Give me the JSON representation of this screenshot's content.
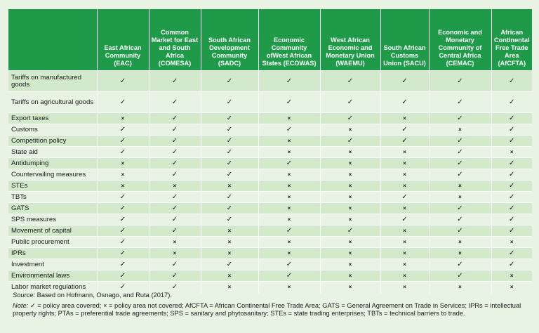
{
  "table": {
    "columns": [
      "East African Community (EAC)",
      "Common Market for East and South Africa (COMESA)",
      "South African Development Community (SADC)",
      "Economic Community ofWest African States (ECOWAS)",
      "West African Economic and Monetary Union (WAEMU)",
      "South African Customs Union (SACU)",
      "Economic and Monetary Community of Central Africa (CEMAC)",
      "African Continental Free Trade Area (AfCFTA)"
    ],
    "symbols": {
      "covered": "✓",
      "not_covered": "×"
    },
    "rows": [
      {
        "label": "Tariffs on manufactured goods",
        "marks": [
          "✓",
          "✓",
          "✓",
          "✓",
          "✓",
          "✓",
          "✓",
          "✓"
        ]
      },
      {
        "label": "Tariffs on agricultural goods",
        "marks": [
          "✓",
          "✓",
          "✓",
          "✓",
          "✓",
          "✓",
          "✓",
          "✓"
        ]
      },
      {
        "label": "Export taxes",
        "marks": [
          "×",
          "✓",
          "✓",
          "×",
          "✓",
          "×",
          "✓",
          "✓"
        ]
      },
      {
        "label": "Customs",
        "marks": [
          "✓",
          "✓",
          "✓",
          "✓",
          "×",
          "✓",
          "×",
          "✓"
        ]
      },
      {
        "label": "Competition policy",
        "marks": [
          "✓",
          "✓",
          "✓",
          "×",
          "✓",
          "✓",
          "✓",
          "✓"
        ]
      },
      {
        "label": "State aid",
        "marks": [
          "✓",
          "✓",
          "✓",
          "×",
          "×",
          "×",
          "✓",
          "×"
        ]
      },
      {
        "label": "Antidumping",
        "marks": [
          "×",
          "✓",
          "✓",
          "✓",
          "×",
          "×",
          "✓",
          "✓"
        ]
      },
      {
        "label": "Countervailing measures",
        "marks": [
          "×",
          "✓",
          "✓",
          "×",
          "×",
          "×",
          "✓",
          "✓"
        ]
      },
      {
        "label": "STEs",
        "marks": [
          "×",
          "×",
          "×",
          "×",
          "×",
          "×",
          "×",
          "✓"
        ]
      },
      {
        "label": "TBTs",
        "marks": [
          "✓",
          "✓",
          "✓",
          "×",
          "×",
          "✓",
          "×",
          "✓"
        ]
      },
      {
        "label": "GATS",
        "marks": [
          "✓",
          "✓",
          "✓",
          "×",
          "×",
          "×",
          "✓",
          "✓"
        ]
      },
      {
        "label": "SPS measures",
        "marks": [
          "✓",
          "✓",
          "✓",
          "×",
          "×",
          "✓",
          "✓",
          "✓"
        ]
      },
      {
        "label": "Movement of capital",
        "marks": [
          "✓",
          "✓",
          "×",
          "✓",
          "✓",
          "×",
          "✓",
          "✓"
        ]
      },
      {
        "label": "Public procurement",
        "marks": [
          "✓",
          "×",
          "×",
          "×",
          "×",
          "×",
          "×",
          "×"
        ]
      },
      {
        "label": "IPRs",
        "marks": [
          "✓",
          "×",
          "×",
          "×",
          "×",
          "×",
          "×",
          "✓"
        ]
      },
      {
        "label": "Investment",
        "marks": [
          "✓",
          "✓",
          "✓",
          "✓",
          "×",
          "×",
          "✓",
          "✓"
        ]
      },
      {
        "label": "Environmental laws",
        "marks": [
          "✓",
          "✓",
          "×",
          "✓",
          "×",
          "×",
          "✓",
          "×"
        ]
      },
      {
        "label": "Labor market regulations",
        "marks": [
          "✓",
          "✓",
          "×",
          "×",
          "×",
          "×",
          "×",
          "×"
        ]
      }
    ]
  },
  "notes": {
    "source_label": "Source:",
    "source_text": "Based on Hofmann, Osnago, and Ruta (2017).",
    "note_label": "Note:",
    "note_text": "✓ = policy area covered; × = policy area not covered; AfCFTA = African Continental Free Trade Area; GATS = General Agreement on Trade in Services; IPRs = intellectual property rights; PTAs = preferential trade agreements; SPS = sanitary and phytosanitary; STEs = state trading enterprises; TBTs = technical barriers to trade."
  }
}
